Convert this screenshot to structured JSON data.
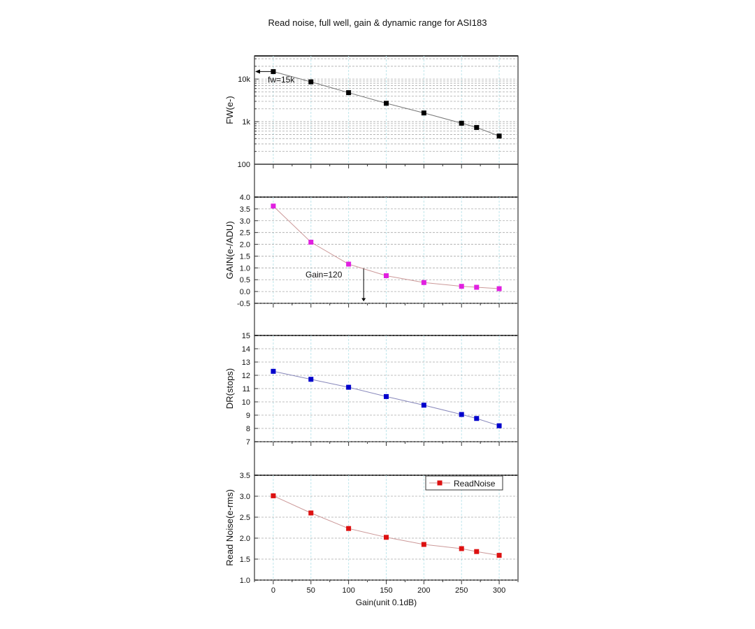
{
  "chart_data": {
    "type": "line",
    "title": "Read noise, full well, gain & dynamic range for ASI183",
    "xlabel": "Gain(unit 0.1dB)",
    "x": [
      0,
      50,
      100,
      150,
      200,
      250,
      270,
      300
    ],
    "xlim": [
      -25,
      325
    ],
    "xticks": [
      "0",
      "50",
      "100",
      "150",
      "200",
      "250",
      "300"
    ],
    "grid": true,
    "panels": [
      {
        "name": "FW",
        "ylabel": "FW(e-)",
        "scale": "log",
        "ylim": [
          100,
          35000
        ],
        "yticks": [
          "100",
          "1k",
          "10k"
        ],
        "color": "#000000",
        "values": [
          15000,
          8600,
          4800,
          2700,
          1600,
          920,
          730,
          460
        ],
        "annotation": "fw=15k"
      },
      {
        "name": "GAIN",
        "ylabel": "GAIN(e-/ADU)",
        "scale": "linear",
        "ylim": [
          -0.5,
          4.0
        ],
        "yticks": [
          "-0.5",
          "0.0",
          "0.5",
          "1.0",
          "1.5",
          "2.0",
          "2.5",
          "3.0",
          "3.5",
          "4.0"
        ],
        "color": "#e020e0",
        "values": [
          3.62,
          2.09,
          1.16,
          0.67,
          0.38,
          0.22,
          0.18,
          0.12
        ],
        "annotation": "Gain=120"
      },
      {
        "name": "DR",
        "ylabel": "DR(stops)",
        "scale": "linear",
        "ylim": [
          7,
          15
        ],
        "yticks": [
          "7",
          "8",
          "9",
          "10",
          "11",
          "12",
          "13",
          "14",
          "15"
        ],
        "color": "#0000cc",
        "values": [
          12.3,
          11.7,
          11.1,
          10.4,
          9.75,
          9.05,
          8.75,
          8.2
        ]
      },
      {
        "name": "ReadNoise",
        "ylabel": "Read Noise(e-rms)",
        "scale": "linear",
        "ylim": [
          1.0,
          3.5
        ],
        "yticks": [
          "1.0",
          "1.5",
          "2.0",
          "2.5",
          "3.0",
          "3.5"
        ],
        "color": "#dd1111",
        "values": [
          3.01,
          2.6,
          2.23,
          2.02,
          1.85,
          1.75,
          1.68,
          1.59
        ],
        "legend": "ReadNoise",
        "legend_position": "top-right"
      }
    ]
  }
}
